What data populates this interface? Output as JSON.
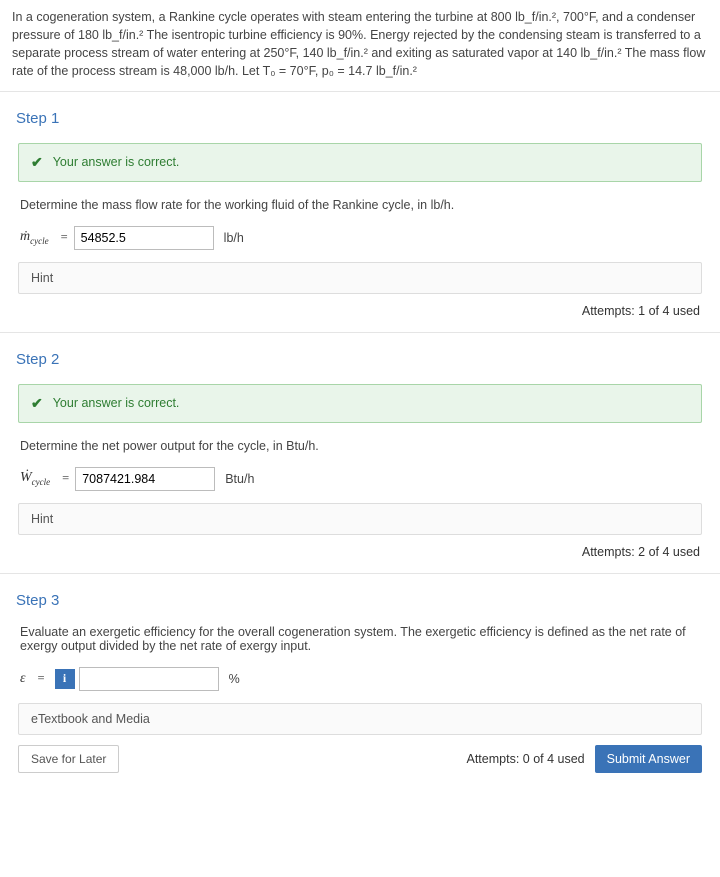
{
  "problem": {
    "text": "In a cogeneration system, a Rankine cycle operates with steam entering the turbine at 800 lb_f/in.², 700°F, and a condenser pressure of 180 lb_f/in.² The isentropic turbine efficiency is 90%. Energy rejected by the condensing steam is transferred to a separate process stream of water entering at 250°F, 140 lb_f/in.² and exiting as saturated vapor at 140 lb_f/in.²  The mass flow rate of the process stream is 48,000 lb/h.  Let T₀ = 70°F, p₀ = 14.7 lb_f/in.²"
  },
  "step1": {
    "title": "Step 1",
    "banner": "Your answer is correct.",
    "prompt": "Determine the mass flow rate for the working fluid of the Rankine cycle, in lb/h.",
    "var_html": "<span style=\"font-style:italic\">ṁ</span><sub>cycle</sub>",
    "value": "54852.5",
    "unit": "lb/h",
    "hint": "Hint",
    "attempts": "Attempts: 1 of 4 used"
  },
  "step2": {
    "title": "Step 2",
    "banner": "Your answer is correct.",
    "prompt": "Determine the net power output for the cycle, in Btu/h.",
    "var_html": "<span style=\"font-style:italic\">Ẇ</span><sub>cycle</sub>",
    "value": "7087421.984",
    "unit": "Btu/h",
    "hint": "Hint",
    "attempts": "Attempts: 2 of 4 used"
  },
  "step3": {
    "title": "Step 3",
    "prompt": "Evaluate an exergetic efficiency for the overall cogeneration system. The exergetic efficiency is defined as the net rate of exergy output divided by the net rate of exergy input.",
    "var_html": "<span style=\"font-style:italic\">ε</span>",
    "value": "",
    "unit": "%",
    "etextbook": "eTextbook and Media",
    "save": "Save for Later",
    "attempts": "Attempts: 0 of 4 used",
    "submit": "Submit Answer"
  }
}
